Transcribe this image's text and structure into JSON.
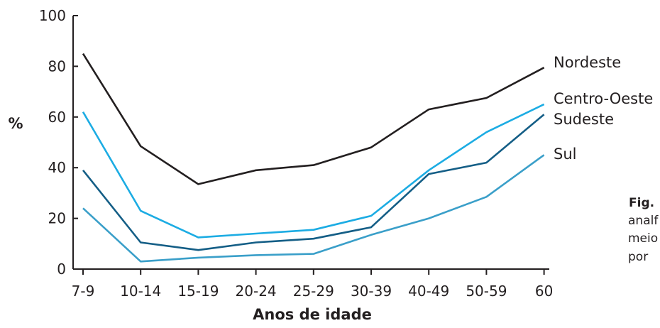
{
  "chart_data": {
    "type": "line",
    "categories": [
      "7-9",
      "10-14",
      "15-19",
      "20-24",
      "25-29",
      "30-39",
      "40-49",
      "50-59",
      "60"
    ],
    "xlabel": "Anos de idade",
    "ylabel": "%",
    "ylim": [
      0,
      100
    ],
    "yticks": [
      "0",
      "20",
      "40",
      "60",
      "80",
      "100"
    ],
    "grid": false,
    "series": [
      {
        "name": "Nordeste",
        "color": "#231f20",
        "values": [
          85,
          48.5,
          33.5,
          39,
          41,
          48,
          63,
          67.5,
          79.5
        ]
      },
      {
        "name": "Centro-Oeste",
        "color": "#1cace3",
        "values": [
          62,
          23,
          12.5,
          14,
          15.5,
          21,
          39,
          54,
          65
        ]
      },
      {
        "name": "Sudeste",
        "color": "#145e86",
        "values": [
          39,
          10.5,
          7.5,
          10.5,
          12,
          16.5,
          37.5,
          42,
          61
        ]
      },
      {
        "name": "Sul",
        "color": "#3a9fc9",
        "values": [
          24,
          3,
          4.5,
          5.5,
          6,
          13.5,
          20,
          28.5,
          45
        ]
      }
    ]
  },
  "caption": {
    "label": "Fig.",
    "lines": [
      "analf",
      "meio",
      "por"
    ]
  }
}
